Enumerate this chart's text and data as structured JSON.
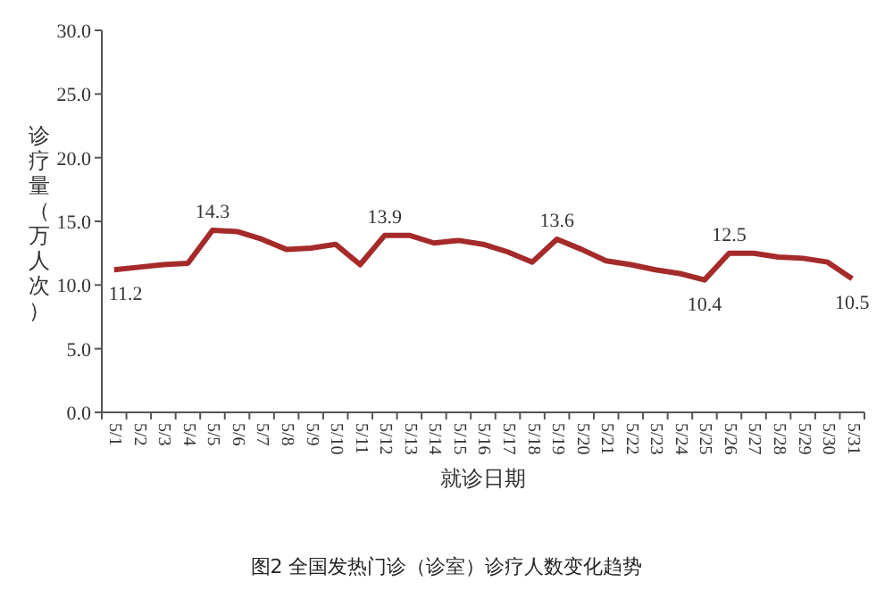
{
  "chart_data": {
    "type": "line",
    "xlabel": "就诊日期",
    "ylabel": "诊疗量（万人次）",
    "annotations": [
      "图2 全国发热门诊（诊室）诊疗人数变化趋势"
    ],
    "categories": [
      "5/1",
      "5/2",
      "5/3",
      "5/4",
      "5/5",
      "5/6",
      "5/7",
      "5/8",
      "5/9",
      "5/10",
      "5/11",
      "5/12",
      "5/13",
      "5/14",
      "5/15",
      "5/16",
      "5/17",
      "5/18",
      "5/19",
      "5/20",
      "5/21",
      "5/22",
      "5/23",
      "5/24",
      "5/25",
      "5/26",
      "5/27",
      "5/28",
      "5/29",
      "5/30",
      "5/31"
    ],
    "series": [
      {
        "color": "#a52a2a",
        "values": [
          11.2,
          11.4,
          11.6,
          11.7,
          14.3,
          14.2,
          13.6,
          12.8,
          12.9,
          13.2,
          11.6,
          13.9,
          13.9,
          13.3,
          13.5,
          13.2,
          12.6,
          11.8,
          13.6,
          12.8,
          11.9,
          11.6,
          11.2,
          10.9,
          10.4,
          12.5,
          12.5,
          12.2,
          12.1,
          11.8,
          10.5
        ],
        "value_labels": [
          "11.2",
          null,
          null,
          null,
          "14.3",
          null,
          null,
          null,
          null,
          null,
          null,
          "13.9",
          null,
          null,
          null,
          null,
          null,
          null,
          "13.6",
          null,
          null,
          null,
          null,
          null,
          "10.4",
          "12.5",
          null,
          null,
          null,
          null,
          "10.5"
        ]
      }
    ],
    "ylim": [
      0,
      30
    ],
    "yticks": [
      {
        "value": 0,
        "label": "0.0"
      },
      {
        "value": 5,
        "label": "5.0"
      },
      {
        "value": 10,
        "label": "10.0"
      },
      {
        "value": 15,
        "label": "15.0"
      },
      {
        "value": 20,
        "label": "20.0"
      },
      {
        "value": 25,
        "label": "25.0"
      },
      {
        "value": 30,
        "label": "30.0"
      }
    ],
    "grid": false,
    "marker": "none",
    "line_style": "solid"
  }
}
